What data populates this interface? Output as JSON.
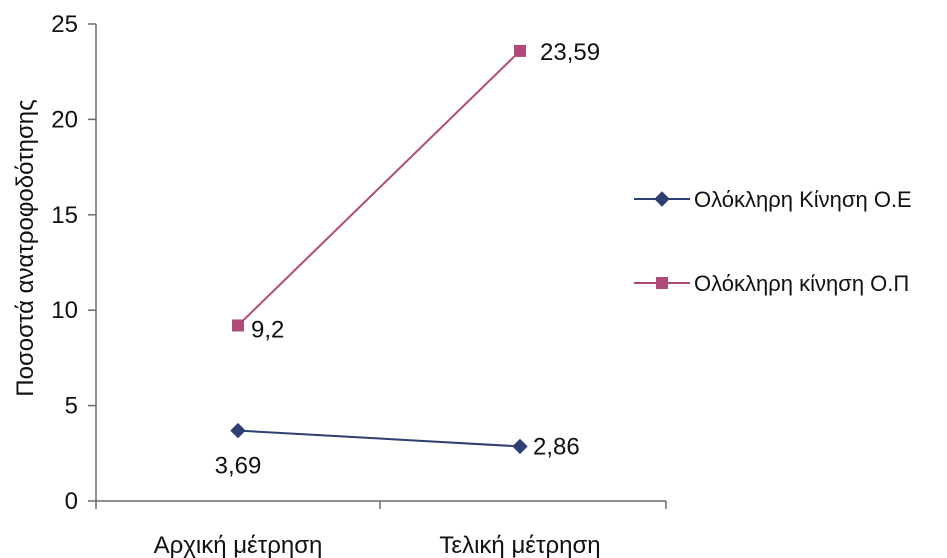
{
  "chart_data": {
    "type": "line",
    "title": "",
    "xlabel": "",
    "ylabel": "Ποσοστά ανατροφοδότησης",
    "categories": [
      "Αρχική μέτρηση",
      "Τελική μέτρηση"
    ],
    "ylim": [
      0,
      25
    ],
    "yticks": [
      0,
      5,
      10,
      15,
      20,
      25
    ],
    "grid": false,
    "legend_position": "right",
    "series": [
      {
        "name": "Ολόκληρη Κίνηση Ο.Ε",
        "values": [
          3.69,
          2.86
        ],
        "data_labels": [
          "3,69",
          "2,86"
        ],
        "color": "#2e3f73",
        "marker": "diamond"
      },
      {
        "name": "Ολόκληρη κίνηση Ο.Π",
        "values": [
          9.2,
          23.59
        ],
        "data_labels": [
          "9,2",
          "23,59"
        ],
        "color": "#b04a78",
        "marker": "square"
      }
    ]
  }
}
